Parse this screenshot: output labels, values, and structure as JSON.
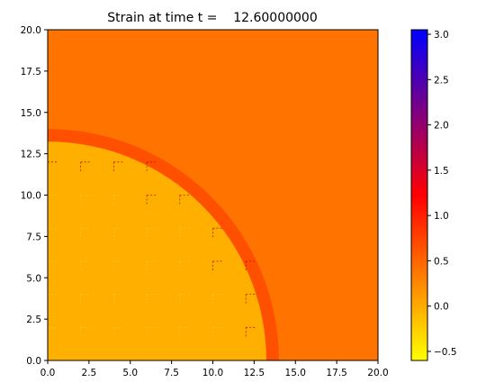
{
  "chart_data": {
    "type": "heatmap",
    "title": "Strain at time t =    12.60000000",
    "xlabel": "",
    "ylabel": "",
    "xlim": [
      0,
      20
    ],
    "ylim": [
      0,
      20
    ],
    "x_ticks": [
      0.0,
      2.5,
      5.0,
      7.5,
      10.0,
      12.5,
      15.0,
      17.5,
      20.0
    ],
    "x_tick_labels": [
      "0.0",
      "2.5",
      "5.0",
      "7.5",
      "10.0",
      "12.5",
      "15.0",
      "17.5",
      "20.0"
    ],
    "y_ticks": [
      0.0,
      2.5,
      5.0,
      7.5,
      10.0,
      12.5,
      15.0,
      17.5,
      20.0
    ],
    "y_tick_labels": [
      "0.0",
      "2.5",
      "5.0",
      "7.5",
      "10.0",
      "12.5",
      "15.0",
      "17.5",
      "20.0"
    ],
    "grid": false,
    "field": {
      "background_value": 0.4,
      "inner_value": -0.1,
      "front_value": 0.65,
      "front_center": [
        0,
        0
      ],
      "front_radius": 14
    },
    "colorbar": {
      "location": "right",
      "range": [
        -0.6,
        3.05
      ],
      "ticks": [
        -0.5,
        0.0,
        0.5,
        1.0,
        1.5,
        2.0,
        2.5,
        3.0
      ],
      "tick_labels": [
        "−0.5",
        "0.0",
        "0.5",
        "1.0",
        "1.5",
        "2.0",
        "2.5",
        "3.0"
      ],
      "colormap": [
        "#ffff00",
        "#ff0000",
        "#0000ff"
      ]
    }
  }
}
